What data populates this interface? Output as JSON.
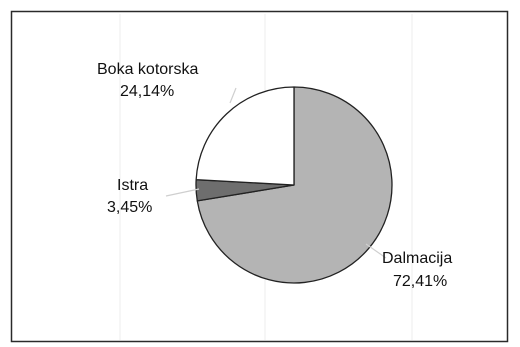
{
  "chart_data": {
    "type": "pie",
    "title": "",
    "slices": [
      {
        "label": "Dalmacija",
        "value_text": "72,41%",
        "value": 72.41,
        "color": "#b4b4b4"
      },
      {
        "label": "Istra",
        "value_text": "3,45%",
        "value": 3.45,
        "color": "#6e6e6e"
      },
      {
        "label": "Boka kotorska",
        "value_text": "24,14%",
        "value": 24.14,
        "color": "#ffffff"
      }
    ],
    "start_angle_deg": 0,
    "direction": "clockwise",
    "legend": "none",
    "grid": false
  },
  "colors": {
    "outline": "#222222",
    "leader": "#cfcfcf",
    "frame": "#2a2a2a"
  }
}
